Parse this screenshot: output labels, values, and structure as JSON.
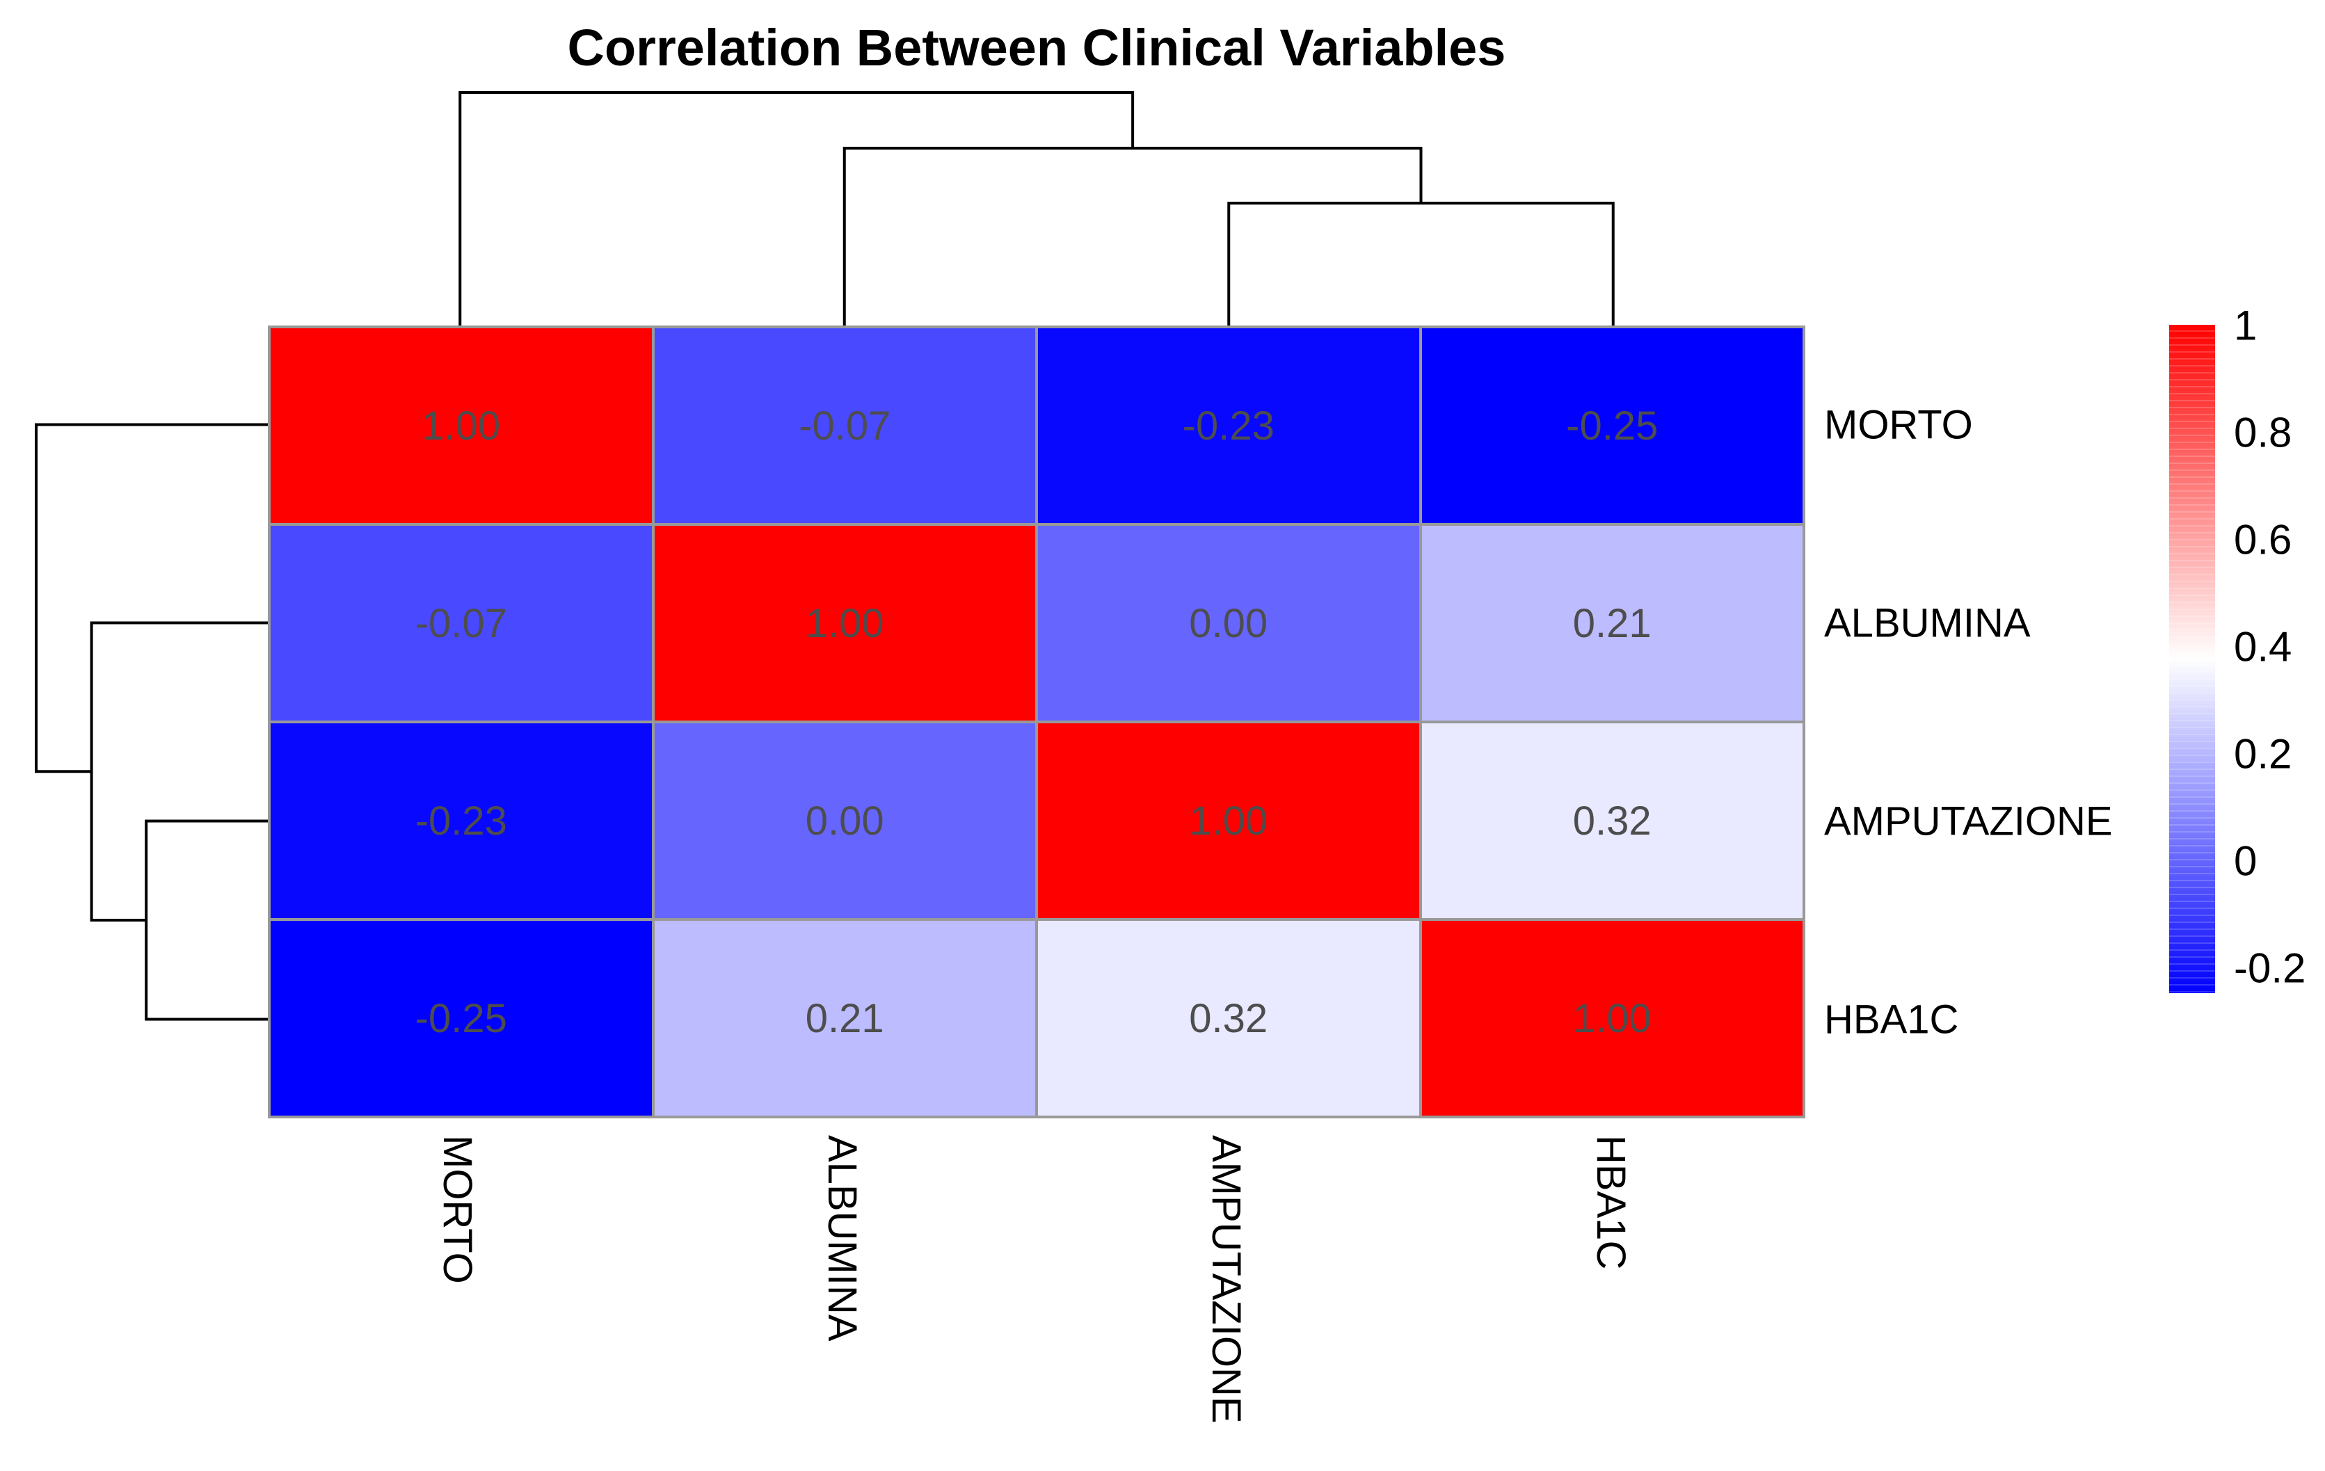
{
  "chart_data": {
    "type": "heatmap",
    "title": "Correlation Between Clinical Variables",
    "rows": [
      "MORTO",
      "ALBUMINA",
      "AMPUTAZIONE",
      "HBA1C"
    ],
    "columns": [
      "MORTO",
      "ALBUMINA",
      "AMPUTAZIONE",
      "HBA1C"
    ],
    "values": [
      [
        1.0,
        -0.07,
        -0.23,
        -0.25
      ],
      [
        -0.07,
        1.0,
        0.0,
        0.21
      ],
      [
        -0.23,
        0.0,
        1.0,
        0.32
      ],
      [
        -0.25,
        0.21,
        0.32,
        1.0
      ]
    ],
    "value_decimals": 2,
    "cell_text_color": "#4d4d4d",
    "cell_border_color": "#999999",
    "line_color": "#000000",
    "colorscale": {
      "min": -0.25,
      "mid": 0.375,
      "max": 1.0,
      "min_color": "#0000ff",
      "mid_color": "#ffffff",
      "max_color": "#ff0000"
    },
    "legend": {
      "tick_labels": [
        "1",
        "0.8",
        "0.6",
        "0.4",
        "0.2",
        "0",
        "-0.2"
      ],
      "tick_values": [
        1,
        0.8,
        0.6,
        0.4,
        0.2,
        0,
        -0.2
      ],
      "top_value": 1.0,
      "bottom_value": -0.25,
      "position": "right"
    },
    "dendrograms": {
      "note_leaf_indices": "indices 0-3 are leaves in row/column order; index 4 is the first merge cluster, 5 the second",
      "column": {
        "merges": [
          {
            "children": [
              2,
              3
            ],
            "height": 0.525
          },
          {
            "children": [
              1,
              4
            ],
            "height": 0.761
          },
          {
            "children": [
              0,
              5
            ],
            "height": 1.0
          }
        ]
      },
      "row": {
        "merges": [
          {
            "children": [
              2,
              3
            ],
            "height": 0.525
          },
          {
            "children": [
              1,
              4
            ],
            "height": 0.761
          },
          {
            "children": [
              0,
              5
            ],
            "height": 1.0
          }
        ]
      }
    }
  }
}
